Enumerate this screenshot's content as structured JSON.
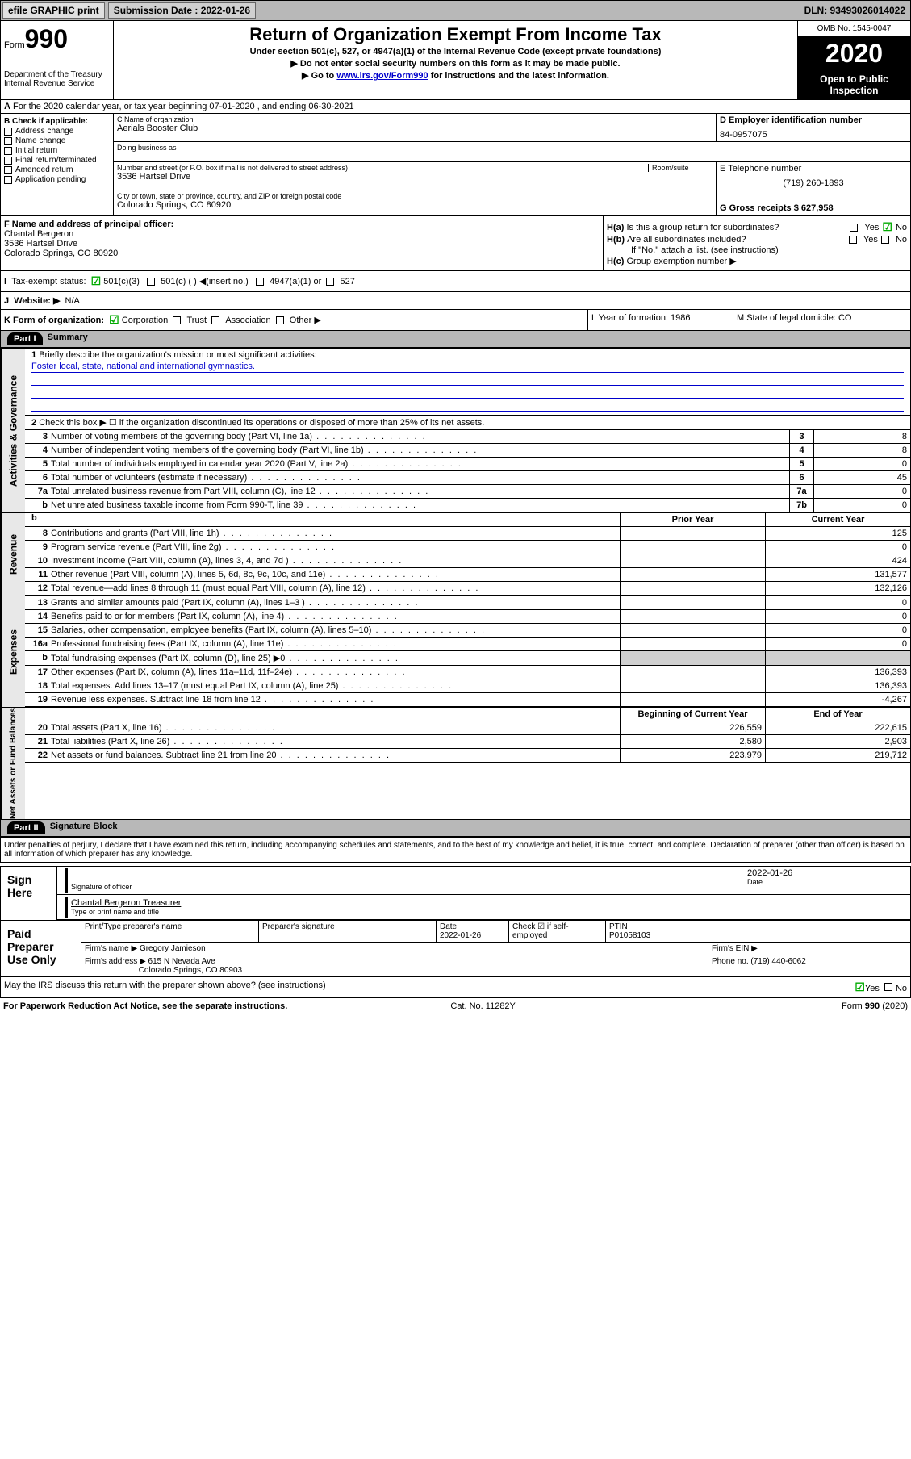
{
  "topbar": {
    "efile": "efile GRAPHIC print",
    "submission": "Submission Date : 2022-01-26",
    "dln": "DLN: 93493026014022"
  },
  "header": {
    "form_label": "Form",
    "form_num": "990",
    "dept": "Department of the Treasury\nInternal Revenue Service",
    "title": "Return of Organization Exempt From Income Tax",
    "sub1": "Under section 501(c), 527, or 4947(a)(1) of the Internal Revenue Code (except private foundations)",
    "sub2": "▶ Do not enter social security numbers on this form as it may be made public.",
    "sub3_pre": "▶ Go to ",
    "sub3_link": "www.irs.gov/Form990",
    "sub3_post": " for instructions and the latest information.",
    "omb": "OMB No. 1545-0047",
    "year": "2020",
    "inspection": "Open to Public Inspection"
  },
  "rowA": "For the 2020 calendar year, or tax year beginning 07-01-2020   , and ending 06-30-2021",
  "rowB": {
    "label": "B Check if applicable:",
    "items": [
      "Address change",
      "Name change",
      "Initial return",
      "Final return/terminated",
      "Amended return",
      "Application pending"
    ]
  },
  "org": {
    "name_label": "C Name of organization",
    "name": "Aerials Booster Club",
    "dba_label": "Doing business as",
    "street_label": "Number and street (or P.O. box if mail is not delivered to street address)",
    "street": "3536 Hartsel Drive",
    "room_label": "Room/suite",
    "city_label": "City or town, state or province, country, and ZIP or foreign postal code",
    "city": "Colorado Springs, CO  80920",
    "emp_label": "D Employer identification number",
    "emp": "84-0957075",
    "phone_label": "E Telephone number",
    "phone": "(719) 260-1893",
    "gross_label": "G Gross receipts $ 627,958"
  },
  "officer": {
    "label": "F  Name and address of principal officer:",
    "name": "Chantal Bergeron",
    "street": "3536 Hartsel Drive",
    "city": "Colorado Springs, CO  80920"
  },
  "h": {
    "a": "Is this a group return for subordinates?",
    "b": "Are all subordinates included?",
    "b_note": "If \"No,\" attach a list. (see instructions)",
    "c": "Group exemption number ▶"
  },
  "rowI": {
    "label": "Tax-exempt status:",
    "opt1": "501(c)(3)",
    "opt2": "501(c) (  ) ◀(insert no.)",
    "opt3": "4947(a)(1) or",
    "opt4": "527"
  },
  "rowJ": {
    "label": "Website: ▶",
    "val": "N/A"
  },
  "rowK": {
    "label": "K Form of organization:",
    "opts": [
      "Corporation",
      "Trust",
      "Association",
      "Other ▶"
    ],
    "year": "L Year of formation: 1986",
    "state": "M State of legal domicile: CO"
  },
  "part1": {
    "header": "Part I",
    "title": "Summary"
  },
  "summary": {
    "q1_label": "Briefly describe the organization's mission or most significant activities:",
    "q1_val": "Foster local, state, national and international gymnastics.",
    "q2": "Check this box ▶ ☐  if the organization discontinued its operations or disposed of more than 25% of its net assets.",
    "rows_ag": [
      {
        "n": "3",
        "label": "Number of voting members of the governing body (Part VI, line 1a)",
        "box": "3",
        "val": "8"
      },
      {
        "n": "4",
        "label": "Number of independent voting members of the governing body (Part VI, line 1b)",
        "box": "4",
        "val": "8"
      },
      {
        "n": "5",
        "label": "Total number of individuals employed in calendar year 2020 (Part V, line 2a)",
        "box": "5",
        "val": "0"
      },
      {
        "n": "6",
        "label": "Total number of volunteers (estimate if necessary)",
        "box": "6",
        "val": "45"
      },
      {
        "n": "7a",
        "label": "Total unrelated business revenue from Part VIII, column (C), line 12",
        "box": "7a",
        "val": "0"
      },
      {
        "n": "b",
        "label": "Net unrelated business taxable income from Form 990-T, line 39",
        "box": "7b",
        "val": "0"
      }
    ],
    "col_prior": "Prior Year",
    "col_current": "Current Year",
    "rows_rev": [
      {
        "n": "8",
        "label": "Contributions and grants (Part VIII, line 1h)",
        "prior": "",
        "curr": "125"
      },
      {
        "n": "9",
        "label": "Program service revenue (Part VIII, line 2g)",
        "prior": "",
        "curr": "0"
      },
      {
        "n": "10",
        "label": "Investment income (Part VIII, column (A), lines 3, 4, and 7d )",
        "prior": "",
        "curr": "424"
      },
      {
        "n": "11",
        "label": "Other revenue (Part VIII, column (A), lines 5, 6d, 8c, 9c, 10c, and 11e)",
        "prior": "",
        "curr": "131,577"
      },
      {
        "n": "12",
        "label": "Total revenue—add lines 8 through 11 (must equal Part VIII, column (A), line 12)",
        "prior": "",
        "curr": "132,126"
      }
    ],
    "rows_exp": [
      {
        "n": "13",
        "label": "Grants and similar amounts paid (Part IX, column (A), lines 1–3 )",
        "prior": "",
        "curr": "0"
      },
      {
        "n": "14",
        "label": "Benefits paid to or for members (Part IX, column (A), line 4)",
        "prior": "",
        "curr": "0"
      },
      {
        "n": "15",
        "label": "Salaries, other compensation, employee benefits (Part IX, column (A), lines 5–10)",
        "prior": "",
        "curr": "0"
      },
      {
        "n": "16a",
        "label": "Professional fundraising fees (Part IX, column (A), line 11e)",
        "prior": "",
        "curr": "0"
      },
      {
        "n": "b",
        "label": "Total fundraising expenses (Part IX, column (D), line 25) ▶0",
        "prior": "GREY",
        "curr": "GREY"
      },
      {
        "n": "17",
        "label": "Other expenses (Part IX, column (A), lines 11a–11d, 11f–24e)",
        "prior": "",
        "curr": "136,393"
      },
      {
        "n": "18",
        "label": "Total expenses. Add lines 13–17 (must equal Part IX, column (A), line 25)",
        "prior": "",
        "curr": "136,393"
      },
      {
        "n": "19",
        "label": "Revenue less expenses. Subtract line 18 from line 12",
        "prior": "",
        "curr": "-4,267"
      }
    ],
    "col_begin": "Beginning of Current Year",
    "col_end": "End of Year",
    "rows_na": [
      {
        "n": "20",
        "label": "Total assets (Part X, line 16)",
        "prior": "226,559",
        "curr": "222,615"
      },
      {
        "n": "21",
        "label": "Total liabilities (Part X, line 26)",
        "prior": "2,580",
        "curr": "2,903"
      },
      {
        "n": "22",
        "label": "Net assets or fund balances. Subtract line 21 from line 20",
        "prior": "223,979",
        "curr": "219,712"
      }
    ]
  },
  "vert_labels": {
    "ag": "Activities & Governance",
    "rev": "Revenue",
    "exp": "Expenses",
    "na": "Net Assets or Fund Balances"
  },
  "part2": {
    "header": "Part II",
    "title": "Signature Block",
    "perjury": "Under penalties of perjury, I declare that I have examined this return, including accompanying schedules and statements, and to the best of my knowledge and belief, it is true, correct, and complete. Declaration of preparer (other than officer) is based on all information of which preparer has any knowledge."
  },
  "sign": {
    "label": "Sign Here",
    "sig_officer": "Signature of officer",
    "date": "2022-01-26",
    "date_label": "Date",
    "name": "Chantal Bergeron  Treasurer",
    "name_label": "Type or print name and title"
  },
  "prep": {
    "label": "Paid Preparer Use Only",
    "print_label": "Print/Type preparer's name",
    "sig_label": "Preparer's signature",
    "date_label": "Date",
    "date": "2022-01-26",
    "check_label": "Check ☑ if self-employed",
    "ptin_label": "PTIN",
    "ptin": "P01058103",
    "firm_name_label": "Firm's name    ▶",
    "firm_name": "Gregory Jamieson",
    "firm_ein_label": "Firm's EIN ▶",
    "firm_addr_label": "Firm's address ▶",
    "firm_addr1": "615 N Nevada Ave",
    "firm_addr2": "Colorado Springs, CO  80903",
    "firm_phone_label": "Phone no. (719) 440-6062"
  },
  "discuss": "May the IRS discuss this return with the preparer shown above? (see instructions)",
  "footer": {
    "pra": "For Paperwork Reduction Act Notice, see the separate instructions.",
    "cat": "Cat. No. 11282Y",
    "form": "Form 990 (2020)"
  }
}
